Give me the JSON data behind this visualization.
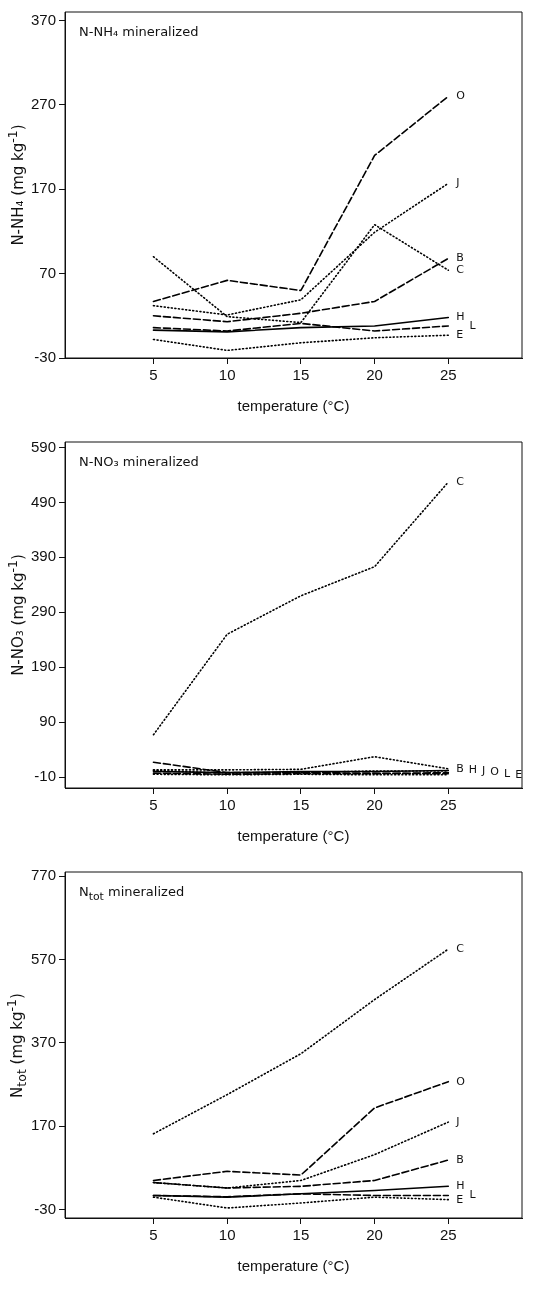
{
  "chart_data": [
    {
      "type": "line",
      "title": "N-NH₄ mineralized",
      "xlabel": "temperature (°C)",
      "ylabel": "N-NH₄ (mg kg$^{-1}$)",
      "x": [
        5,
        10,
        15,
        20,
        25
      ],
      "xlim": [
        -1,
        30
      ],
      "xticks": [
        5,
        10,
        15,
        20,
        25
      ],
      "ylim": [
        -30,
        380
      ],
      "yticks": [
        -30,
        70,
        170,
        270,
        370
      ],
      "grid": false,
      "legend": false,
      "marker": "none",
      "series": [
        {
          "name": "O",
          "color": "#000000",
          "line_style": "dashed",
          "values": [
            37,
            62,
            50,
            210,
            280
          ]
        },
        {
          "name": "J",
          "color": "#000000",
          "line_style": "dotted",
          "values": [
            32,
            21,
            39,
            119,
            177
          ]
        },
        {
          "name": "B",
          "color": "#000000",
          "line_style": "dashed",
          "values": [
            20,
            13,
            23,
            37,
            88
          ]
        },
        {
          "name": "C",
          "color": "#000000",
          "line_style": "dotted",
          "values": [
            90,
            19,
            12,
            128,
            74
          ]
        },
        {
          "name": "H",
          "color": "#000000",
          "line_style": "solid",
          "values": [
            3,
            1,
            6,
            8,
            18
          ]
        },
        {
          "name": "L",
          "color": "#000000",
          "line_style": "dashed",
          "values": [
            6,
            2,
            11,
            2,
            8
          ]
        },
        {
          "name": "E",
          "color": "#000000",
          "line_style": "dotted",
          "values": [
            -8,
            -21,
            -12,
            -6,
            -3
          ]
        }
      ]
    },
    {
      "type": "line",
      "title": "N-NO₃ mineralized",
      "xlabel": "temperature (°C)",
      "ylabel": "N-NO₃ (mg kg$^{-1}$)",
      "x": [
        5,
        10,
        15,
        20,
        25
      ],
      "xlim": [
        -1,
        30
      ],
      "xticks": [
        5,
        10,
        15,
        20,
        25
      ],
      "ylim": [
        -30,
        600
      ],
      "yticks": [
        -10,
        90,
        190,
        290,
        390,
        490,
        590
      ],
      "grid": false,
      "legend": false,
      "marker": "none",
      "series": [
        {
          "name": "C",
          "color": "#000000",
          "line_style": "dotted",
          "values": [
            67,
            250,
            320,
            373,
            527
          ]
        },
        {
          "name": "B",
          "color": "#000000",
          "line_style": "dotted",
          "values": [
            3,
            3,
            4,
            27,
            5
          ]
        },
        {
          "name": "H",
          "color": "#000000",
          "line_style": "solid",
          "values": [
            0,
            -2,
            0,
            0,
            2
          ]
        },
        {
          "name": "J",
          "color": "#000000",
          "line_style": "dotted",
          "values": [
            2,
            -3,
            -2,
            1,
            1
          ]
        },
        {
          "name": "O",
          "color": "#000000",
          "line_style": "dashed",
          "values": [
            -3,
            -5,
            -4,
            -4,
            -2
          ]
        },
        {
          "name": "L",
          "color": "#000000",
          "line_style": "dashed",
          "values": [
            17,
            -2,
            -2,
            -3,
            -4
          ]
        },
        {
          "name": "E",
          "color": "#000000",
          "line_style": "dotted",
          "values": [
            -5,
            -6,
            -5,
            -6,
            -6
          ]
        }
      ]
    },
    {
      "type": "line",
      "title": "N$_{tot}$ mineralized",
      "xlabel": "temperature (°C)",
      "ylabel": "N$_{tot}$ (mg kg$^{-1}$)",
      "x": [
        5,
        10,
        15,
        20,
        25
      ],
      "xlim": [
        -1,
        30
      ],
      "xticks": [
        5,
        10,
        15,
        20,
        25
      ],
      "ylim": [
        -50,
        780
      ],
      "yticks": [
        -30,
        170,
        370,
        570,
        770
      ],
      "grid": false,
      "legend": false,
      "marker": "none",
      "series": [
        {
          "name": "C",
          "color": "#000000",
          "line_style": "dotted",
          "values": [
            152,
            246,
            344,
            474,
            595
          ]
        },
        {
          "name": "O",
          "color": "#000000",
          "line_style": "dashed",
          "values": [
            40,
            62,
            53,
            214,
            277
          ]
        },
        {
          "name": "J",
          "color": "#000000",
          "line_style": "dotted",
          "values": [
            35,
            22,
            40,
            102,
            180
          ]
        },
        {
          "name": "B",
          "color": "#000000",
          "line_style": "dashed",
          "values": [
            35,
            22,
            26,
            40,
            89
          ]
        },
        {
          "name": "H",
          "color": "#000000",
          "line_style": "solid",
          "values": [
            4,
            0,
            8,
            16,
            26
          ]
        },
        {
          "name": "L",
          "color": "#000000",
          "line_style": "dashed",
          "values": [
            4,
            1,
            8,
            4,
            4
          ]
        },
        {
          "name": "E",
          "color": "#000000",
          "line_style": "dotted",
          "values": [
            0,
            -26,
            -14,
            0,
            -6
          ]
        }
      ]
    }
  ]
}
